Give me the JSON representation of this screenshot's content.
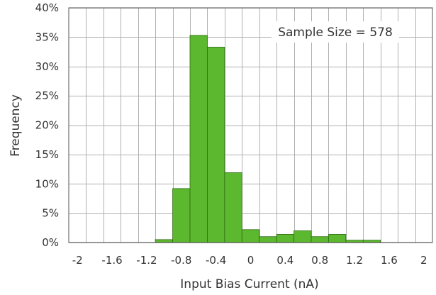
{
  "chart_data": {
    "type": "bar",
    "title": "",
    "xlabel": "Input Bias Current (nA)",
    "ylabel": "Frequency",
    "xlim": [
      -2.1,
      2.1
    ],
    "ylim": [
      0,
      40
    ],
    "bin_width": 0.2,
    "x_tick_values": [
      -2,
      -1.6,
      -1.2,
      -0.8,
      -0.4,
      0,
      0.4,
      0.8,
      1.2,
      1.6,
      2
    ],
    "x_tick_labels": [
      "-2",
      "-1.6",
      "-1.2",
      "-0.8",
      "-0.4",
      "0",
      "0.4",
      "0.8",
      "1.2",
      "1.6",
      "2"
    ],
    "y_tick_values": [
      0,
      5,
      10,
      15,
      20,
      25,
      30,
      35,
      40
    ],
    "y_tick_labels": [
      "0%",
      "5%",
      "10%",
      "15%",
      "20%",
      "25%",
      "30%",
      "35%",
      "40%"
    ],
    "bins": [
      {
        "left": -1.1,
        "value": 0.5
      },
      {
        "left": -0.9,
        "value": 9.2
      },
      {
        "left": -0.7,
        "value": 35.3
      },
      {
        "left": -0.5,
        "value": 33.3
      },
      {
        "left": -0.3,
        "value": 11.9
      },
      {
        "left": -0.1,
        "value": 2.2
      },
      {
        "left": 0.1,
        "value": 1.0
      },
      {
        "left": 0.3,
        "value": 1.4
      },
      {
        "left": 0.5,
        "value": 2.0
      },
      {
        "left": 0.7,
        "value": 1.0
      },
      {
        "left": 0.9,
        "value": 1.4
      },
      {
        "left": 1.1,
        "value": 0.4
      },
      {
        "left": 1.3,
        "value": 0.4
      }
    ],
    "grid": true,
    "bar_color": "#5cb82e",
    "bar_edge_color": "#2d6b12",
    "annotation": "Sample Size = 578"
  }
}
